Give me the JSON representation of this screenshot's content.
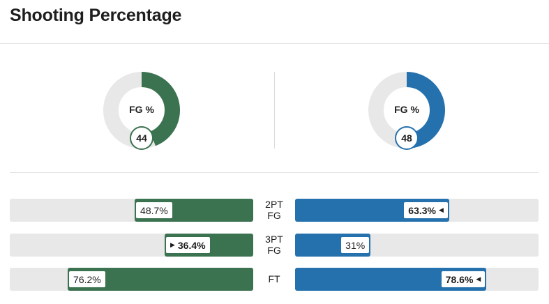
{
  "header": {
    "title": "Shooting Percentage"
  },
  "colors": {
    "home": "#3b7250",
    "away": "#2471ae",
    "track": "#e8e8e8"
  },
  "donuts": [
    {
      "side": "home",
      "label": "FG %",
      "value": "44",
      "percent": 44
    },
    {
      "side": "away",
      "label": "FG %",
      "value": "48",
      "percent": 48
    }
  ],
  "rows": [
    {
      "stat_line1": "2PT",
      "stat_line2": "FG",
      "home": {
        "text": "48.7%",
        "percent": 48.7,
        "leader": false
      },
      "away": {
        "text": "63.3%",
        "percent": 63.3,
        "leader": true
      }
    },
    {
      "stat_line1": "3PT",
      "stat_line2": "FG",
      "home": {
        "text": "36.4%",
        "percent": 36.4,
        "leader": true
      },
      "away": {
        "text": "31%",
        "percent": 31,
        "leader": false
      }
    },
    {
      "stat_line1": "FT",
      "stat_line2": "",
      "home": {
        "text": "76.2%",
        "percent": 76.2,
        "leader": false
      },
      "away": {
        "text": "78.6%",
        "percent": 78.6,
        "leader": true
      }
    }
  ],
  "icons": {
    "leader_right": "caret-right-icon",
    "leader_left": "caret-left-icon"
  }
}
